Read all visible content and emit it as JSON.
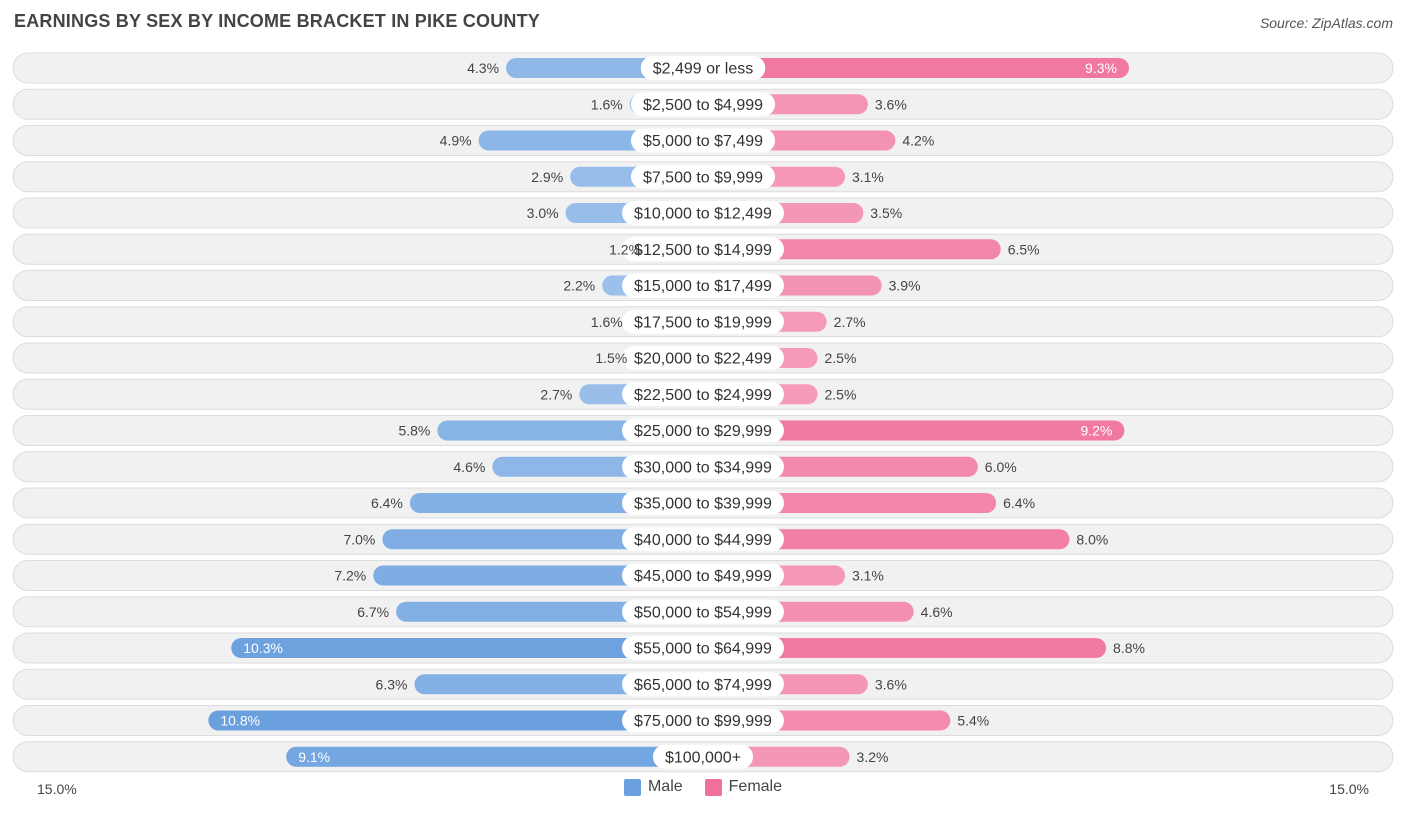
{
  "title": "EARNINGS BY SEX BY INCOME BRACKET IN PIKE COUNTY",
  "source": "Source: ZipAtlas.com",
  "colors": {
    "male_dark": "#6aa0de",
    "male_light": "#a8c8ee",
    "female_dark": "#f07099",
    "female_light": "#f6a8c2"
  },
  "chart_data": {
    "type": "bar",
    "orientation": "horizontal-diverging",
    "title": "EARNINGS BY SEX BY INCOME BRACKET IN PIKE COUNTY",
    "categories": [
      "$2,499 or less",
      "$2,500 to $4,999",
      "$5,000 to $7,499",
      "$7,500 to $9,999",
      "$10,000 to $12,499",
      "$12,500 to $14,999",
      "$15,000 to $17,499",
      "$17,500 to $19,999",
      "$20,000 to $22,499",
      "$22,500 to $24,999",
      "$25,000 to $29,999",
      "$30,000 to $34,999",
      "$35,000 to $39,999",
      "$40,000 to $44,999",
      "$45,000 to $49,999",
      "$50,000 to $54,999",
      "$55,000 to $64,999",
      "$65,000 to $74,999",
      "$75,000 to $99,999",
      "$100,000+"
    ],
    "series": [
      {
        "name": "Male",
        "values": [
          4.3,
          1.6,
          4.9,
          2.9,
          3.0,
          1.2,
          2.2,
          1.6,
          1.5,
          2.7,
          5.8,
          4.6,
          6.4,
          7.0,
          7.2,
          6.7,
          10.3,
          6.3,
          10.8,
          9.1
        ],
        "labels": [
          "4.3%",
          "1.6%",
          "4.9%",
          "2.9%",
          "3.0%",
          "1.2%",
          "2.2%",
          "1.6%",
          "1.5%",
          "2.7%",
          "5.8%",
          "4.6%",
          "6.4%",
          "7.0%",
          "7.2%",
          "6.7%",
          "10.3%",
          "6.3%",
          "10.8%",
          "9.1%"
        ]
      },
      {
        "name": "Female",
        "values": [
          9.3,
          3.6,
          4.2,
          3.1,
          3.5,
          6.5,
          3.9,
          2.7,
          2.5,
          2.5,
          9.2,
          6.0,
          6.4,
          8.0,
          3.1,
          4.6,
          8.8,
          3.6,
          5.4,
          3.2
        ],
        "labels": [
          "9.3%",
          "3.6%",
          "4.2%",
          "3.1%",
          "3.5%",
          "6.5%",
          "3.9%",
          "2.7%",
          "2.5%",
          "2.5%",
          "9.2%",
          "6.0%",
          "6.4%",
          "8.0%",
          "3.1%",
          "4.6%",
          "8.8%",
          "3.6%",
          "5.4%",
          "3.2%"
        ]
      }
    ],
    "axis": {
      "min_label": "15.0%",
      "max_label": "15.0%",
      "range": [
        -15,
        15
      ]
    },
    "legend": {
      "position": "bottom-center",
      "entries": [
        "Male",
        "Female"
      ]
    },
    "grid": false
  }
}
